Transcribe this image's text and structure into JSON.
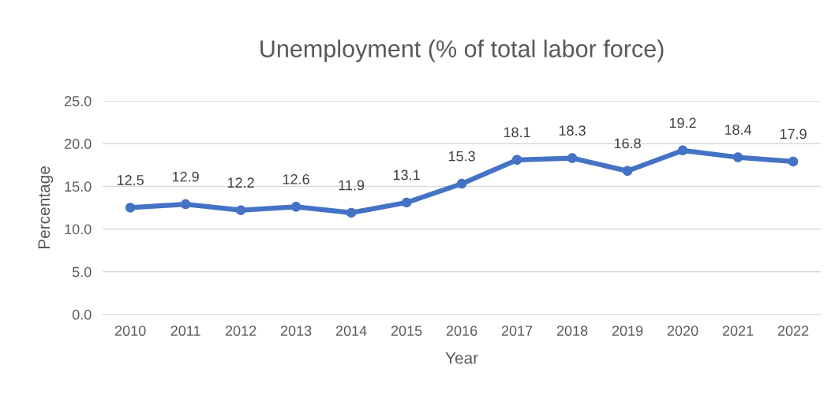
{
  "chart_data": {
    "type": "line",
    "title": "Unemployment (% of total labor force)",
    "xlabel": "Year",
    "ylabel": "Percentage",
    "categories": [
      "2010",
      "2011",
      "2012",
      "2013",
      "2014",
      "2015",
      "2016",
      "2017",
      "2018",
      "2019",
      "2020",
      "2021",
      "2022"
    ],
    "series": [
      {
        "color": "#4472c4",
        "values": [
          12.5,
          12.9,
          12.2,
          12.6,
          11.9,
          13.1,
          15.3,
          18.1,
          18.3,
          16.8,
          19.2,
          18.4,
          17.9
        ]
      }
    ],
    "ylim": [
      0,
      25
    ],
    "yticks": [
      {
        "value": 0,
        "label": "0.0"
      },
      {
        "value": 5,
        "label": "5.0"
      },
      {
        "value": 10,
        "label": "10.0"
      },
      {
        "value": 15,
        "label": "15.0"
      },
      {
        "value": 20,
        "label": "20.0"
      },
      {
        "value": 25,
        "label": "25.0"
      }
    ],
    "grid": "y",
    "marker": "circle",
    "line_style": "solid",
    "data_labels": true
  }
}
